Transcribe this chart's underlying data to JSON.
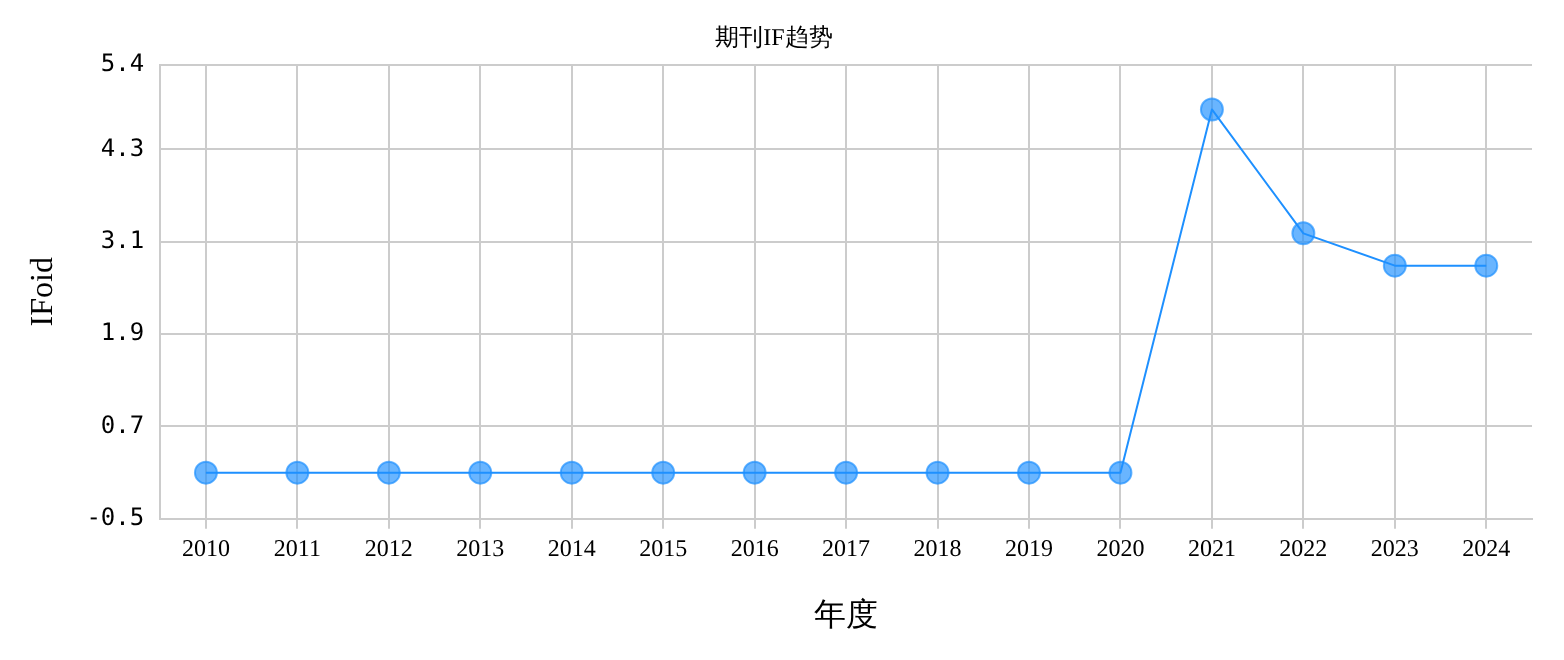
{
  "chart_data": {
    "type": "line",
    "title": "期刊IF趋势",
    "xlabel": "年度",
    "ylabel": "IFoid",
    "categories": [
      "2010",
      "2011",
      "2012",
      "2013",
      "2014",
      "2015",
      "2016",
      "2017",
      "2018",
      "2019",
      "2020",
      "2021",
      "2022",
      "2023",
      "2024"
    ],
    "series": [
      {
        "color": "#1e90ff",
        "values": [
          0.1,
          0.1,
          0.1,
          0.1,
          0.1,
          0.1,
          0.1,
          0.1,
          0.1,
          0.1,
          0.1,
          4.82,
          3.21,
          2.79,
          2.79
        ]
      }
    ],
    "ylim": [
      -0.5,
      5.4
    ],
    "yticks": [
      -0.5,
      0.7,
      1.9,
      3.1,
      4.3,
      5.4
    ],
    "grid": true,
    "legend": false,
    "marker": "circle",
    "line_style": "solid"
  }
}
